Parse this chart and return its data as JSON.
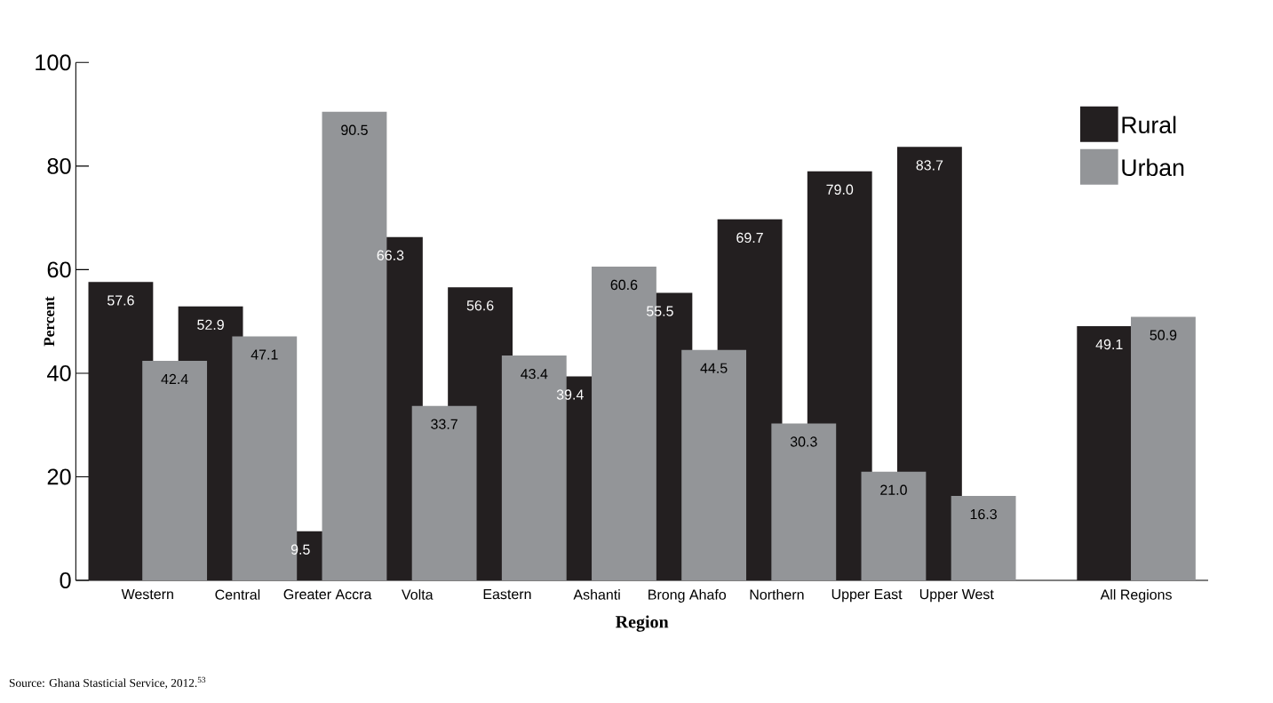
{
  "chart_data": {
    "type": "bar",
    "categories": [
      "Western",
      "Central",
      "Greater Accra",
      "Volta",
      "Eastern",
      "Ashanti",
      "Brong Ahafo",
      "Northern",
      "Upper East",
      "Upper West",
      null,
      "All Regions"
    ],
    "series": [
      {
        "name": "Rural",
        "color": "#231f20",
        "values": [
          57.6,
          52.9,
          9.5,
          66.3,
          56.6,
          39.4,
          55.5,
          69.7,
          79.0,
          83.7,
          null,
          49.1
        ],
        "value_labels": [
          "57.6",
          "52.9",
          "9.5",
          "66.3",
          "56.6",
          "39.4",
          "55.5",
          "69.7",
          "79.0",
          "83.7",
          null,
          "49.1"
        ]
      },
      {
        "name": "Urban",
        "color": "#939598",
        "values": [
          42.4,
          47.1,
          90.5,
          33.7,
          43.4,
          60.6,
          44.5,
          30.3,
          21.0,
          16.3,
          null,
          50.9
        ],
        "value_labels": [
          "42.4",
          "47.1",
          "90.5",
          "33.7",
          "43.4",
          "60.6",
          "44.5",
          "30.3",
          "21.0",
          "16.3",
          null,
          "50.9"
        ]
      }
    ],
    "xlabel": "Region",
    "ylabel": "Percent",
    "ylim": [
      0,
      100
    ],
    "yticks": [
      0,
      20,
      40,
      60,
      80,
      100
    ],
    "legend": "top right",
    "annotations": [
      "Source: Ghana Stasticial Service, 2012.$^{53}$"
    ]
  }
}
